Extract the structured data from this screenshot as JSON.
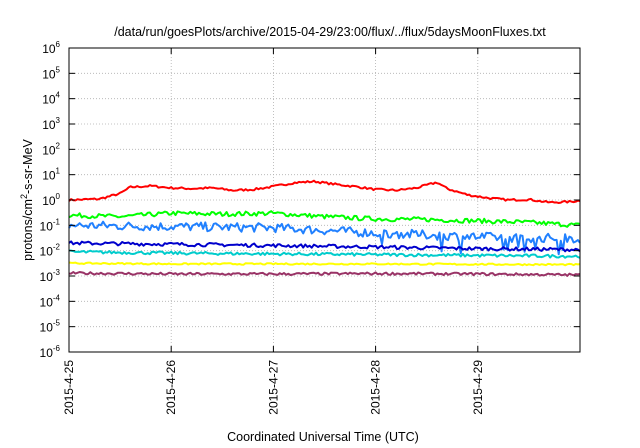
{
  "chart_data": {
    "type": "line",
    "title": "/data/run/goesPlots/archive/2015-04-29/23:00/flux/../flux/5daysMoonFluxes.txt",
    "xlabel": "Coordinated Universal Time (UTC)",
    "ylabel": {
      "base": "protons/cm",
      "sup": "2",
      "rest": "-s-sr-MeV"
    },
    "x_ticks": [
      "2015-4-25",
      "2015-4-26",
      "2015-4-27",
      "2015-4-28",
      "2015-4-29"
    ],
    "xlim_days": [
      0,
      5
    ],
    "y_scale": "log",
    "y_tick_exponents": [
      -6,
      -5,
      -4,
      -3,
      -2,
      -1,
      0,
      1,
      2,
      3,
      4,
      5,
      6
    ],
    "ylim": [
      1e-06,
      1000000.0
    ],
    "grid": true,
    "legend": "none",
    "series": [
      {
        "color": "#ff0000",
        "points": [
          [
            0,
            1.0
          ],
          [
            0.3,
            1.1
          ],
          [
            0.5,
            1.8
          ],
          [
            0.6,
            3.2
          ],
          [
            0.8,
            3.6
          ],
          [
            1.0,
            3.0
          ],
          [
            1.2,
            2.8
          ],
          [
            1.4,
            3.0
          ],
          [
            1.6,
            2.4
          ],
          [
            1.8,
            2.6
          ],
          [
            2.0,
            3.4
          ],
          [
            2.2,
            4.8
          ],
          [
            2.4,
            5.4
          ],
          [
            2.6,
            4.2
          ],
          [
            2.8,
            3.4
          ],
          [
            3.0,
            2.6
          ],
          [
            3.2,
            2.4
          ],
          [
            3.4,
            3.0
          ],
          [
            3.6,
            5.0
          ],
          [
            3.7,
            2.8
          ],
          [
            3.9,
            1.6
          ],
          [
            4.1,
            1.2
          ],
          [
            4.3,
            1.0
          ],
          [
            4.5,
            1.05
          ],
          [
            4.7,
            0.8
          ],
          [
            4.9,
            0.85
          ],
          [
            5.0,
            0.95
          ]
        ],
        "noise": 0.04
      },
      {
        "color": "#00ff00",
        "points": [
          [
            0,
            0.25
          ],
          [
            0.5,
            0.22
          ],
          [
            1.0,
            0.3
          ],
          [
            1.5,
            0.28
          ],
          [
            2.0,
            0.3
          ],
          [
            2.5,
            0.22
          ],
          [
            3.0,
            0.18
          ],
          [
            3.5,
            0.17
          ],
          [
            4.0,
            0.15
          ],
          [
            4.5,
            0.13
          ],
          [
            5.0,
            0.1
          ]
        ],
        "noise": 0.09
      },
      {
        "color": "#2080ff",
        "points": [
          [
            0,
            0.1
          ],
          [
            1.0,
            0.09
          ],
          [
            2.0,
            0.08
          ],
          [
            3.0,
            0.05
          ],
          [
            4.0,
            0.035
          ],
          [
            5.0,
            0.03
          ]
        ],
        "noise": 0.18
      },
      {
        "color": "#0000cc",
        "points": [
          [
            0,
            0.02
          ],
          [
            1.0,
            0.018
          ],
          [
            2.0,
            0.016
          ],
          [
            3.0,
            0.014
          ],
          [
            4.0,
            0.012
          ],
          [
            5.0,
            0.011
          ]
        ],
        "noise": 0.07
      },
      {
        "color": "#00cccc",
        "points": [
          [
            0,
            0.009
          ],
          [
            1.0,
            0.008
          ],
          [
            2.0,
            0.0075
          ],
          [
            3.0,
            0.007
          ],
          [
            4.0,
            0.0065
          ],
          [
            5.0,
            0.006
          ]
        ],
        "noise": 0.06
      },
      {
        "color": "#ffff00",
        "points": [
          [
            0,
            0.0032
          ],
          [
            1.0,
            0.003
          ],
          [
            2.0,
            0.003
          ],
          [
            3.0,
            0.003
          ],
          [
            4.0,
            0.0029
          ],
          [
            5.0,
            0.0028
          ]
        ],
        "noise": 0.03
      },
      {
        "color": "#993366",
        "points": [
          [
            0,
            0.0013
          ],
          [
            1.0,
            0.0012
          ],
          [
            2.0,
            0.0012
          ],
          [
            3.0,
            0.00125
          ],
          [
            4.0,
            0.0012
          ],
          [
            5.0,
            0.0011
          ]
        ],
        "noise": 0.05
      }
    ]
  }
}
